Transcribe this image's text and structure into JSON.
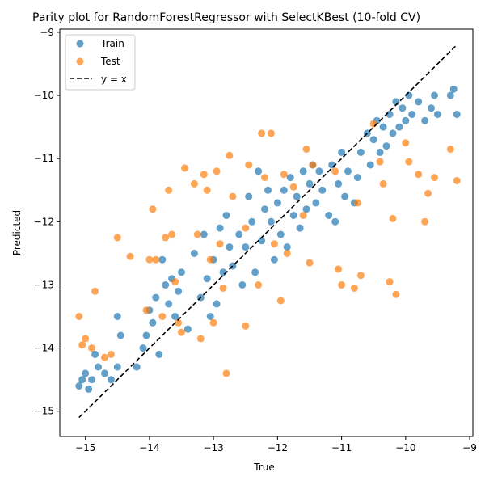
{
  "chart_data": {
    "type": "scatter",
    "title": "Parity plot for RandomForestRegressor with SelectKBest (10-fold CV)",
    "xlabel": "True",
    "ylabel": "Predicted",
    "xlim": [
      -15.4,
      -8.95
    ],
    "ylim": [
      -15.4,
      -8.95
    ],
    "xticks": [
      -15,
      -14,
      -13,
      -12,
      -11,
      -10,
      -9
    ],
    "yticks": [
      -15,
      -14,
      -13,
      -12,
      -11,
      -10,
      -9
    ],
    "tick_labels": [
      "−15",
      "−14",
      "−13",
      "−12",
      "−11",
      "−10",
      "−9"
    ],
    "grid": false,
    "legend": {
      "position": "top-left",
      "entries": [
        "Train",
        "Test",
        "y = x"
      ]
    },
    "colors": {
      "train": "#1f77b4",
      "test": "#ff7f0e",
      "reference": "#000000"
    },
    "reference_line": {
      "name": "y = x",
      "x": [
        -15.1,
        -9.2
      ],
      "y": [
        -15.1,
        -9.2
      ]
    },
    "series": [
      {
        "name": "Train",
        "points": [
          [
            -15.1,
            -14.6
          ],
          [
            -15.05,
            -14.5
          ],
          [
            -15.0,
            -14.4
          ],
          [
            -14.95,
            -14.65
          ],
          [
            -14.9,
            -14.5
          ],
          [
            -14.85,
            -14.1
          ],
          [
            -14.8,
            -14.3
          ],
          [
            -14.7,
            -14.4
          ],
          [
            -14.6,
            -14.5
          ],
          [
            -14.5,
            -14.3
          ],
          [
            -14.5,
            -13.5
          ],
          [
            -14.45,
            -13.8
          ],
          [
            -14.2,
            -14.3
          ],
          [
            -14.1,
            -14.0
          ],
          [
            -14.05,
            -13.8
          ],
          [
            -14.0,
            -13.4
          ],
          [
            -13.95,
            -13.6
          ],
          [
            -13.9,
            -13.2
          ],
          [
            -13.85,
            -14.1
          ],
          [
            -13.8,
            -12.6
          ],
          [
            -13.75,
            -13.0
          ],
          [
            -13.7,
            -13.3
          ],
          [
            -13.65,
            -12.9
          ],
          [
            -13.6,
            -13.5
          ],
          [
            -13.55,
            -13.1
          ],
          [
            -13.5,
            -12.8
          ],
          [
            -13.4,
            -13.7
          ],
          [
            -13.3,
            -12.5
          ],
          [
            -13.2,
            -13.2
          ],
          [
            -13.15,
            -12.2
          ],
          [
            -13.1,
            -12.9
          ],
          [
            -13.05,
            -13.5
          ],
          [
            -13.0,
            -12.6
          ],
          [
            -12.95,
            -13.3
          ],
          [
            -12.9,
            -12.1
          ],
          [
            -12.85,
            -12.8
          ],
          [
            -12.8,
            -11.9
          ],
          [
            -12.75,
            -12.4
          ],
          [
            -12.7,
            -12.7
          ],
          [
            -12.6,
            -12.2
          ],
          [
            -12.55,
            -13.0
          ],
          [
            -12.5,
            -12.4
          ],
          [
            -12.45,
            -11.6
          ],
          [
            -12.4,
            -12.0
          ],
          [
            -12.35,
            -12.8
          ],
          [
            -12.3,
            -11.2
          ],
          [
            -12.25,
            -12.3
          ],
          [
            -12.2,
            -11.8
          ],
          [
            -12.15,
            -11.5
          ],
          [
            -12.1,
            -12.0
          ],
          [
            -12.05,
            -12.6
          ],
          [
            -12.0,
            -11.7
          ],
          [
            -11.95,
            -12.2
          ],
          [
            -11.9,
            -11.5
          ],
          [
            -11.85,
            -12.4
          ],
          [
            -11.8,
            -11.3
          ],
          [
            -11.75,
            -11.9
          ],
          [
            -11.7,
            -11.6
          ],
          [
            -11.65,
            -12.1
          ],
          [
            -11.6,
            -11.2
          ],
          [
            -11.55,
            -11.8
          ],
          [
            -11.5,
            -11.4
          ],
          [
            -11.45,
            -11.1
          ],
          [
            -11.4,
            -11.7
          ],
          [
            -11.35,
            -11.2
          ],
          [
            -11.3,
            -11.5
          ],
          [
            -11.2,
            -11.9
          ],
          [
            -11.15,
            -11.1
          ],
          [
            -11.1,
            -12.0
          ],
          [
            -11.05,
            -11.4
          ],
          [
            -11.0,
            -10.9
          ],
          [
            -10.95,
            -11.6
          ],
          [
            -10.9,
            -11.2
          ],
          [
            -10.8,
            -11.7
          ],
          [
            -10.75,
            -11.3
          ],
          [
            -10.7,
            -10.9
          ],
          [
            -10.6,
            -10.6
          ],
          [
            -10.55,
            -11.1
          ],
          [
            -10.5,
            -10.7
          ],
          [
            -10.45,
            -10.4
          ],
          [
            -10.4,
            -10.9
          ],
          [
            -10.35,
            -10.5
          ],
          [
            -10.3,
            -10.8
          ],
          [
            -10.25,
            -10.3
          ],
          [
            -10.2,
            -10.6
          ],
          [
            -10.15,
            -10.1
          ],
          [
            -10.1,
            -10.5
          ],
          [
            -10.05,
            -10.2
          ],
          [
            -10.0,
            -10.4
          ],
          [
            -9.95,
            -10.0
          ],
          [
            -9.9,
            -10.3
          ],
          [
            -9.8,
            -10.1
          ],
          [
            -9.7,
            -10.4
          ],
          [
            -9.6,
            -10.2
          ],
          [
            -9.55,
            -10.0
          ],
          [
            -9.5,
            -10.3
          ],
          [
            -9.3,
            -10.0
          ],
          [
            -9.25,
            -9.9
          ],
          [
            -9.2,
            -10.3
          ]
        ]
      },
      {
        "name": "Test",
        "points": [
          [
            -15.1,
            -13.5
          ],
          [
            -15.05,
            -13.95
          ],
          [
            -15.0,
            -13.85
          ],
          [
            -14.9,
            -14.0
          ],
          [
            -14.85,
            -13.1
          ],
          [
            -14.7,
            -14.15
          ],
          [
            -14.6,
            -14.1
          ],
          [
            -14.5,
            -12.25
          ],
          [
            -14.3,
            -12.55
          ],
          [
            -14.05,
            -13.4
          ],
          [
            -14.0,
            -12.6
          ],
          [
            -13.95,
            -11.8
          ],
          [
            -13.9,
            -12.6
          ],
          [
            -13.8,
            -13.5
          ],
          [
            -13.75,
            -12.25
          ],
          [
            -13.7,
            -11.5
          ],
          [
            -13.65,
            -12.2
          ],
          [
            -13.6,
            -12.95
          ],
          [
            -13.55,
            -13.6
          ],
          [
            -13.5,
            -13.75
          ],
          [
            -13.45,
            -11.15
          ],
          [
            -13.3,
            -11.4
          ],
          [
            -13.25,
            -12.2
          ],
          [
            -13.2,
            -13.85
          ],
          [
            -13.15,
            -11.25
          ],
          [
            -13.1,
            -11.5
          ],
          [
            -13.05,
            -12.6
          ],
          [
            -13.0,
            -13.6
          ],
          [
            -12.95,
            -11.2
          ],
          [
            -12.9,
            -12.35
          ],
          [
            -12.85,
            -13.05
          ],
          [
            -12.8,
            -14.4
          ],
          [
            -12.75,
            -10.95
          ],
          [
            -12.7,
            -11.6
          ],
          [
            -12.5,
            -12.1
          ],
          [
            -12.5,
            -13.65
          ],
          [
            -12.45,
            -11.1
          ],
          [
            -12.3,
            -13.0
          ],
          [
            -12.25,
            -10.6
          ],
          [
            -12.2,
            -11.3
          ],
          [
            -12.1,
            -10.6
          ],
          [
            -12.05,
            -12.35
          ],
          [
            -11.95,
            -13.25
          ],
          [
            -11.9,
            -11.25
          ],
          [
            -11.85,
            -12.5
          ],
          [
            -11.75,
            -11.45
          ],
          [
            -11.6,
            -11.9
          ],
          [
            -11.55,
            -10.85
          ],
          [
            -11.5,
            -12.65
          ],
          [
            -11.45,
            -11.1
          ],
          [
            -11.1,
            -11.2
          ],
          [
            -11.05,
            -12.75
          ],
          [
            -11.0,
            -13.0
          ],
          [
            -10.8,
            -13.05
          ],
          [
            -10.75,
            -11.7
          ],
          [
            -10.7,
            -12.85
          ],
          [
            -10.5,
            -10.45
          ],
          [
            -10.4,
            -11.05
          ],
          [
            -10.35,
            -11.4
          ],
          [
            -10.25,
            -12.95
          ],
          [
            -10.2,
            -11.95
          ],
          [
            -10.15,
            -13.15
          ],
          [
            -10.0,
            -10.75
          ],
          [
            -9.95,
            -11.05
          ],
          [
            -9.8,
            -11.25
          ],
          [
            -9.7,
            -12.0
          ],
          [
            -9.65,
            -11.55
          ],
          [
            -9.55,
            -11.3
          ],
          [
            -9.3,
            -10.85
          ],
          [
            -9.2,
            -11.35
          ]
        ]
      }
    ]
  }
}
